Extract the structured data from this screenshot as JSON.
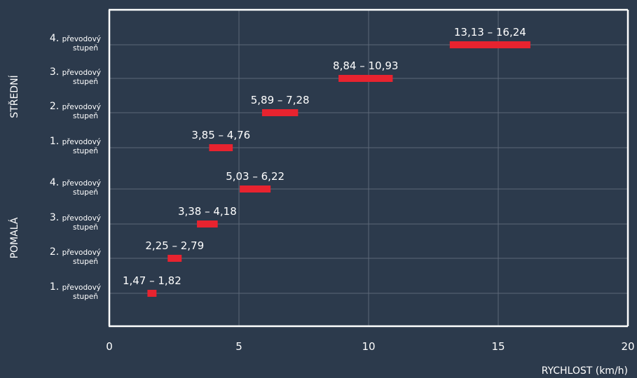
{
  "chart_data": {
    "type": "bar",
    "orientation": "horizontal-range",
    "xlabel": "RYCHLOST (km/h)",
    "xlim": [
      0,
      20
    ],
    "x_ticks": [
      "0",
      "5",
      "10",
      "15",
      "20"
    ],
    "grid": true,
    "groups": [
      {
        "name": "POMALÁ",
        "rows": [
          {
            "gear_num": "1.",
            "gear_word": "převodový",
            "gear_word2": "stupeň",
            "min": 1.47,
            "max": 1.82,
            "label": "1,47 – 1,82"
          },
          {
            "gear_num": "2.",
            "gear_word": "převodový",
            "gear_word2": "stupeň",
            "min": 2.25,
            "max": 2.79,
            "label": "2,25 – 2,79"
          },
          {
            "gear_num": "3.",
            "gear_word": "převodový",
            "gear_word2": "stupeň",
            "min": 3.38,
            "max": 4.18,
            "label": "3,38 – 4,18"
          },
          {
            "gear_num": "4.",
            "gear_word": "převodový",
            "gear_word2": "stupeň",
            "min": 5.03,
            "max": 6.22,
            "label": "5,03 – 6,22"
          }
        ]
      },
      {
        "name": "STŘEDNÍ",
        "rows": [
          {
            "gear_num": "1.",
            "gear_word": "převodový",
            "gear_word2": "stupeň",
            "min": 3.85,
            "max": 4.76,
            "label": "3,85 – 4,76"
          },
          {
            "gear_num": "2.",
            "gear_word": "převodový",
            "gear_word2": "stupeň",
            "min": 5.89,
            "max": 7.28,
            "label": "5,89 – 7,28"
          },
          {
            "gear_num": "3.",
            "gear_word": "převodový",
            "gear_word2": "stupeň",
            "min": 8.84,
            "max": 10.93,
            "label": "8,84 – 10,93"
          },
          {
            "gear_num": "4.",
            "gear_word": "převodový",
            "gear_word2": "stupeň",
            "min": 13.13,
            "max": 16.24,
            "label": "13,13 – 16,24"
          }
        ]
      }
    ],
    "colors": {
      "background": "#2c3a4c",
      "bar": "#e8232f",
      "grid": "#5c6878",
      "text": "#ffffff"
    }
  }
}
